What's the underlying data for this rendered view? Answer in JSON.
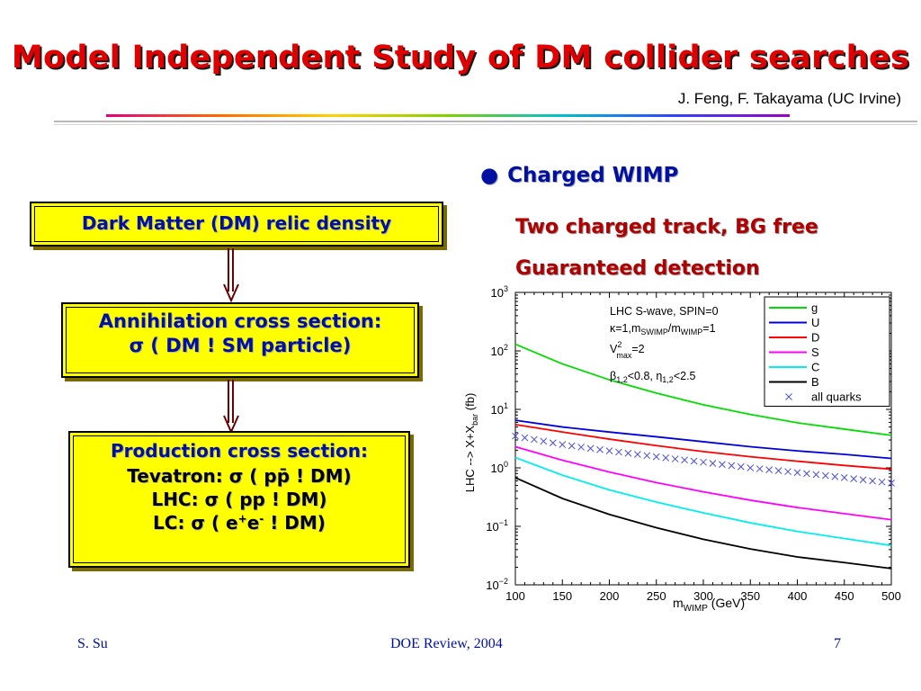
{
  "slide": {
    "title": "Model Independent Study of DM collider searches",
    "authors": "J. Feng, F. Takayama (UC Irvine)"
  },
  "flow": {
    "box1": "Dark Matter (DM) relic density",
    "box2_line1": "Annihilation cross section:",
    "box2_line2": "σ ( DM ! SM particle)",
    "box3_line1": "Production cross section:",
    "box3_line2": "Tevatron: σ ( pp̄ ! DM)",
    "box3_line3": "LHC: σ ( pp ! DM)",
    "box3_line4_pre": "LC: σ ( e",
    "box3_line4_sup1": "+",
    "box3_line4_mid": "e",
    "box3_line4_sup2": "-",
    "box3_line4_post": " ! DM)"
  },
  "bullets": {
    "main": "Charged WIMP",
    "sub1": "Two charged track, BG free",
    "sub2": "Guaranteed detection"
  },
  "chart_data": {
    "type": "line",
    "xlabel": "m_WIMP (GeV)",
    "ylabel": "LHC --> X+X_bar (fb)",
    "xlim": [
      100,
      500
    ],
    "ylim": [
      0.01,
      1000
    ],
    "yscale": "log",
    "x_ticks": [
      "100",
      "150",
      "200",
      "250",
      "300",
      "350",
      "400",
      "450",
      "500"
    ],
    "y_ticks": [
      "10^-2",
      "10^-1",
      "10^0",
      "10^1",
      "10^2",
      "10^3"
    ],
    "grid": false,
    "annotation": [
      "LHC  S-wave, SPIN=0",
      "κ=1,m_SWIMP/m_WIMP=1",
      "V^2_max=2",
      "β_1,2<0.8, η_1,2<2.5"
    ],
    "legend_placement": "top-right",
    "x": [
      100,
      150,
      200,
      250,
      300,
      350,
      400,
      450,
      500
    ],
    "series": [
      {
        "name": "g",
        "color": "#00dd00",
        "values": [
          130,
          60,
          32,
          19,
          12,
          8.2,
          5.9,
          4.6,
          3.6
        ]
      },
      {
        "name": "U",
        "color": "#0000dd",
        "values": [
          6.5,
          5.0,
          4.1,
          3.4,
          2.8,
          2.3,
          1.95,
          1.7,
          1.45
        ]
      },
      {
        "name": "D",
        "color": "#ff0000",
        "values": [
          5.5,
          4.1,
          3.1,
          2.4,
          1.9,
          1.55,
          1.3,
          1.1,
          0.95
        ]
      },
      {
        "name": "S",
        "color": "#ff00ff",
        "values": [
          2.3,
          1.35,
          0.85,
          0.56,
          0.39,
          0.28,
          0.21,
          0.165,
          0.13
        ]
      },
      {
        "name": "C",
        "color": "#00eeee",
        "values": [
          1.5,
          0.75,
          0.42,
          0.26,
          0.17,
          0.115,
          0.082,
          0.062,
          0.047
        ]
      },
      {
        "name": "B",
        "color": "#000000",
        "values": [
          0.68,
          0.3,
          0.16,
          0.095,
          0.06,
          0.041,
          0.03,
          0.024,
          0.019
        ]
      },
      {
        "name": "all quarks",
        "color": "#4a50d8",
        "marker": "x",
        "values": [
          3.5,
          2.5,
          1.95,
          1.55,
          1.25,
          1.0,
          0.83,
          0.68,
          0.55
        ]
      }
    ]
  },
  "footer": {
    "left": "S. Su",
    "center": "DOE Review, 2004",
    "right": "7"
  }
}
